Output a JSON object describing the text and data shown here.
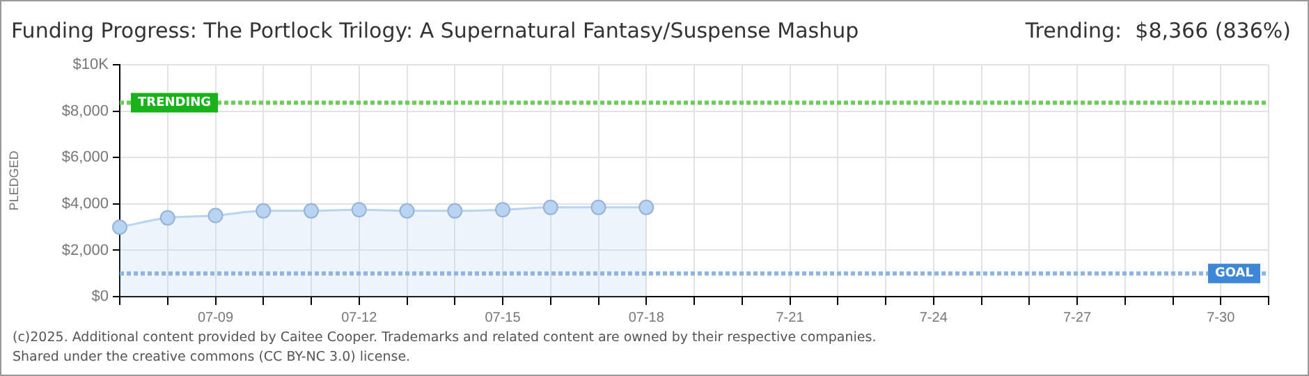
{
  "chart_data": {
    "type": "area",
    "title": "Funding Progress: The Portlock Trilogy: A Supernatural Fantasy/Suspense Mashup",
    "ylabel": "PLEDGED",
    "annotations": [
      "Trending:  $8,366 (836%)",
      "(c)2025. Additional content provided by Caitee Cooper. Trademarks and related content are owned by their respective companies.",
      "Shared under the creative commons (CC BY-NC 3.0) license."
    ],
    "categories": [
      null,
      null,
      "07-09",
      null,
      null,
      "07-12",
      null,
      null,
      "07-15",
      null,
      null,
      "07-18",
      null,
      null,
      "7-21",
      null,
      null,
      "7-24",
      null,
      null,
      "7-27",
      null,
      null,
      "7-30",
      null
    ],
    "series": [
      {
        "color": "#b8d4f2",
        "values": [
          3000,
          3400,
          3500,
          3700,
          3700,
          3750,
          3700,
          3700,
          3750,
          3850,
          3850,
          3850,
          null,
          null,
          null,
          null,
          null,
          null,
          null,
          null,
          null,
          null,
          null,
          null,
          null
        ]
      }
    ],
    "ylim": [
      0,
      10000
    ],
    "yticks": [
      {
        "value": 0,
        "label": "$0"
      },
      {
        "value": 2000,
        "label": "$2,000"
      },
      {
        "value": 4000,
        "label": "$4,000"
      },
      {
        "value": 6000,
        "label": "$6,000"
      },
      {
        "value": 8000,
        "label": "$8,000"
      },
      {
        "value": 10000,
        "label": "$10K"
      }
    ],
    "ref_lines": [
      {
        "axis": "y",
        "value": 8366,
        "label": "TRENDING",
        "color": "#6ccc5c",
        "line_style": "dotted"
      },
      {
        "axis": "y",
        "value": 1000,
        "label": "GOAL",
        "color": "#8fb4e0",
        "line_style": "dotted"
      }
    ],
    "grid": true,
    "marker": "circle",
    "legend": false
  }
}
